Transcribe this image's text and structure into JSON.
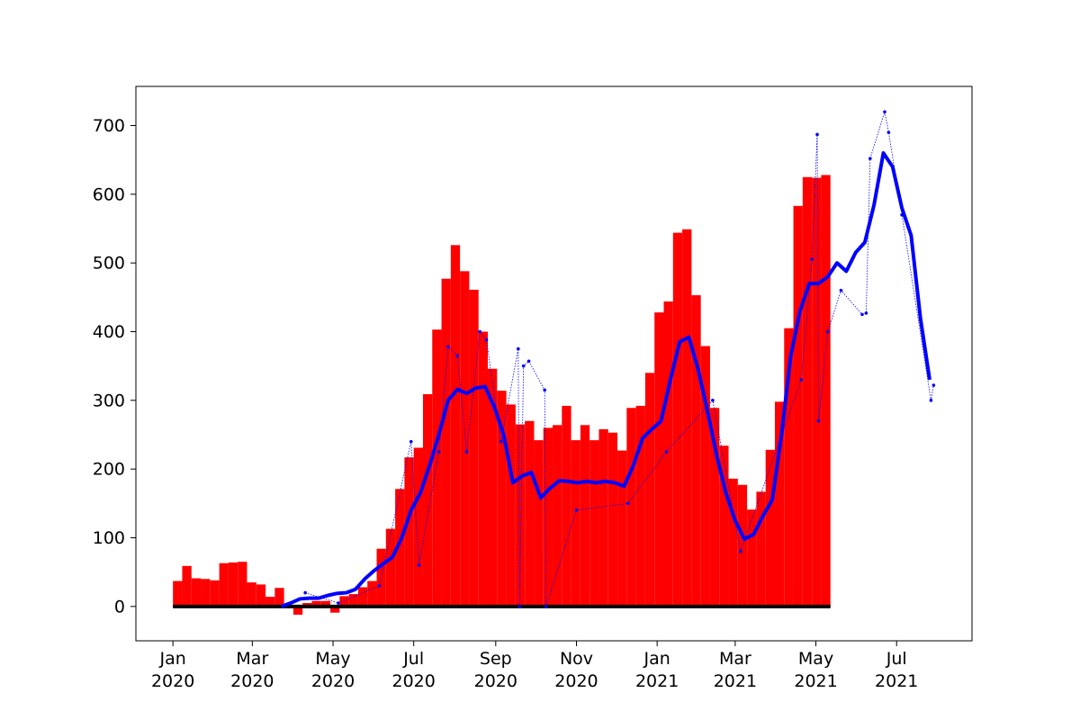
{
  "chart_data": {
    "type": "combo",
    "xlim": [
      "2019-12-04",
      "2021-08-27"
    ],
    "ylim": [
      -50,
      757
    ],
    "yticks": [
      0,
      100,
      200,
      300,
      400,
      500,
      600,
      700
    ],
    "xticks": [
      {
        "value": "2020-01-01",
        "label": "Jan\n2020"
      },
      {
        "value": "2020-03-01",
        "label": "Mar\n2020"
      },
      {
        "value": "2020-05-01",
        "label": "May\n2020"
      },
      {
        "value": "2020-07-01",
        "label": "Jul\n2020"
      },
      {
        "value": "2020-09-01",
        "label": "Sep\n2020"
      },
      {
        "value": "2020-11-01",
        "label": "Nov\n2020"
      },
      {
        "value": "2021-01-01",
        "label": "Jan\n2021"
      },
      {
        "value": "2021-03-01",
        "label": "Mar\n2021"
      },
      {
        "value": "2021-05-01",
        "label": "May\n2021"
      },
      {
        "value": "2021-07-01",
        "label": "Jul\n2021"
      }
    ],
    "baseline_color": "#000000",
    "series": [
      {
        "type": "bar",
        "color": "#ff0000",
        "x": [
          "2020-01-01",
          "2020-01-08",
          "2020-01-15",
          "2020-01-22",
          "2020-01-29",
          "2020-02-05",
          "2020-02-12",
          "2020-02-19",
          "2020-02-26",
          "2020-03-04",
          "2020-03-11",
          "2020-03-18",
          "2020-03-25",
          "2020-04-01",
          "2020-04-08",
          "2020-04-15",
          "2020-04-22",
          "2020-04-29",
          "2020-05-06",
          "2020-05-13",
          "2020-05-20",
          "2020-05-27",
          "2020-06-03",
          "2020-06-10",
          "2020-06-17",
          "2020-06-24",
          "2020-07-01",
          "2020-07-08",
          "2020-07-15",
          "2020-07-22",
          "2020-07-29",
          "2020-08-05",
          "2020-08-12",
          "2020-08-19",
          "2020-08-26",
          "2020-09-02",
          "2020-09-09",
          "2020-09-16",
          "2020-09-23",
          "2020-09-30",
          "2020-10-07",
          "2020-10-14",
          "2020-10-21",
          "2020-10-28",
          "2020-11-04",
          "2020-11-11",
          "2020-11-18",
          "2020-11-25",
          "2020-12-02",
          "2020-12-09",
          "2020-12-16",
          "2020-12-23",
          "2020-12-30",
          "2021-01-06",
          "2021-01-13",
          "2021-01-20",
          "2021-01-27",
          "2021-02-03",
          "2021-02-10",
          "2021-02-17",
          "2021-02-24",
          "2021-03-03",
          "2021-03-10",
          "2021-03-17",
          "2021-03-24",
          "2021-03-31",
          "2021-04-07",
          "2021-04-14",
          "2021-04-21",
          "2021-04-28",
          "2021-05-05"
        ],
        "values": [
          37,
          59,
          41,
          40,
          38,
          63,
          64,
          65,
          35,
          32,
          14,
          27,
          0,
          -12,
          5,
          8,
          8,
          -9,
          15,
          18,
          28,
          37,
          84,
          113,
          171,
          217,
          231,
          309,
          403,
          477,
          526,
          488,
          461,
          400,
          346,
          314,
          294,
          265,
          270,
          242,
          260,
          264,
          292,
          242,
          264,
          242,
          258,
          253,
          227,
          289,
          292,
          340,
          428,
          444,
          544,
          549,
          453,
          379,
          289,
          234,
          186,
          177,
          141,
          167,
          228,
          298,
          405,
          583,
          625,
          624,
          628
        ]
      },
      {
        "type": "scatter",
        "color": "#0000ff",
        "x": [
          "2020-04-10",
          "2020-05-05",
          "2020-06-05",
          "2020-06-29",
          "2020-07-05",
          "2020-07-20",
          "2020-07-27",
          "2020-08-03",
          "2020-08-10",
          "2020-08-20",
          "2020-08-25",
          "2020-09-05",
          "2020-09-18",
          "2020-09-19",
          "2020-09-22",
          "2020-09-26",
          "2020-10-08",
          "2020-10-09",
          "2020-11-01",
          "2020-12-10",
          "2021-01-08",
          "2021-02-12",
          "2021-03-05",
          "2021-04-20",
          "2021-04-28",
          "2021-05-02",
          "2021-05-03",
          "2021-05-10",
          "2021-05-20",
          "2021-06-05",
          "2021-06-08",
          "2021-06-11",
          "2021-06-22",
          "2021-06-25",
          "2021-07-05",
          "2021-07-27",
          "2021-07-29"
        ],
        "values": [
          20,
          5,
          30,
          240,
          60,
          225,
          378,
          365,
          225,
          400,
          388,
          240,
          375,
          0,
          350,
          357,
          315,
          0,
          140,
          150,
          225,
          300,
          80,
          330,
          505,
          687,
          270,
          400,
          460,
          425,
          427,
          652,
          720,
          690,
          570,
          300,
          322
        ]
      },
      {
        "type": "line",
        "color": "#0000ff",
        "x": [
          "2020-03-23",
          "2020-03-30",
          "2020-04-06",
          "2020-04-13",
          "2020-04-20",
          "2020-04-27",
          "2020-05-04",
          "2020-05-11",
          "2020-05-18",
          "2020-05-25",
          "2020-06-01",
          "2020-06-08",
          "2020-06-15",
          "2020-06-22",
          "2020-06-29",
          "2020-07-06",
          "2020-07-13",
          "2020-07-20",
          "2020-07-27",
          "2020-08-03",
          "2020-08-10",
          "2020-08-17",
          "2020-08-24",
          "2020-08-31",
          "2020-09-07",
          "2020-09-14",
          "2020-09-21",
          "2020-09-28",
          "2020-10-05",
          "2020-10-12",
          "2020-10-19",
          "2020-10-26",
          "2020-11-02",
          "2020-11-09",
          "2020-11-16",
          "2020-11-23",
          "2020-11-30",
          "2020-12-07",
          "2020-12-14",
          "2020-12-21",
          "2020-12-28",
          "2021-01-04",
          "2021-01-11",
          "2021-01-18",
          "2021-01-25",
          "2021-02-01",
          "2021-02-08",
          "2021-02-15",
          "2021-02-22",
          "2021-03-01",
          "2021-03-08",
          "2021-03-15",
          "2021-03-22",
          "2021-03-29",
          "2021-04-05",
          "2021-04-12",
          "2021-04-19",
          "2021-04-26",
          "2021-05-03",
          "2021-05-10",
          "2021-05-17",
          "2021-05-24",
          "2021-05-31",
          "2021-06-07",
          "2021-06-14",
          "2021-06-21",
          "2021-06-28",
          "2021-07-05",
          "2021-07-12",
          "2021-07-19",
          "2021-07-26"
        ],
        "values": [
          0,
          5,
          11,
          12,
          12,
          16,
          19,
          20,
          25,
          40,
          52,
          62,
          72,
          100,
          140,
          165,
          205,
          250,
          300,
          316,
          310,
          318,
          320,
          290,
          250,
          180,
          190,
          195,
          158,
          172,
          183,
          182,
          180,
          182,
          180,
          182,
          180,
          175,
          205,
          245,
          258,
          270,
          330,
          385,
          392,
          345,
          285,
          220,
          165,
          125,
          98,
          105,
          132,
          155,
          250,
          365,
          430,
          470,
          470,
          480,
          500,
          488,
          515,
          530,
          585,
          660,
          640,
          580,
          540,
          420,
          330
        ]
      }
    ]
  }
}
